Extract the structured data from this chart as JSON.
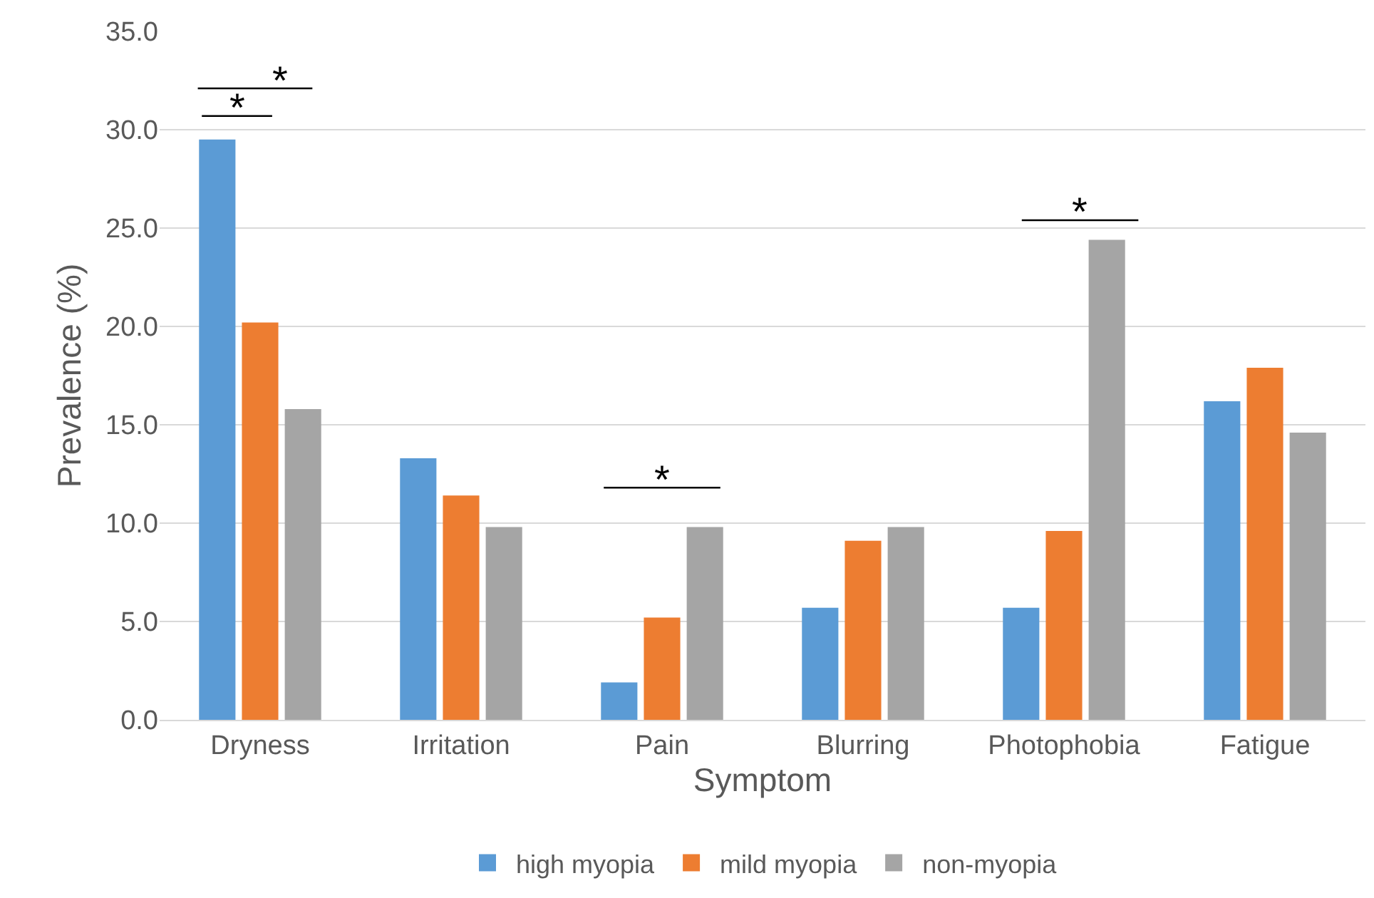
{
  "chart_data": {
    "type": "bar",
    "xlabel": "Symptom",
    "ylabel": "Prevalence (%)",
    "categories": [
      "Dryness",
      "Irritation",
      "Pain",
      "Blurring",
      "Photophobia",
      "Fatigue"
    ],
    "series": [
      {
        "name": "high myopia",
        "color": "#5b9bd5",
        "values": [
          29.5,
          13.3,
          1.9,
          5.7,
          5.7,
          16.2
        ]
      },
      {
        "name": "mild myopia",
        "color": "#ed7d31",
        "values": [
          20.2,
          11.4,
          5.2,
          9.1,
          9.6,
          17.9
        ]
      },
      {
        "name": "non-myopia",
        "color": "#a5a5a5",
        "values": [
          15.8,
          9.8,
          9.8,
          9.8,
          24.4,
          14.6
        ]
      }
    ],
    "ylim": [
      0,
      35
    ],
    "yticks": [
      {
        "value": 0,
        "label": "0.0"
      },
      {
        "value": 5,
        "label": "5.0"
      },
      {
        "value": 10,
        "label": "10.0"
      },
      {
        "value": 15,
        "label": "15.0"
      },
      {
        "value": 20,
        "label": "20.0"
      },
      {
        "value": 25,
        "label": "25.0"
      },
      {
        "value": 30,
        "label": "30.0"
      },
      {
        "value": 35,
        "label": "35.0"
      }
    ],
    "grid": "y",
    "legend": "bottom",
    "annotations": [
      "*",
      "*",
      "*",
      "*"
    ]
  }
}
